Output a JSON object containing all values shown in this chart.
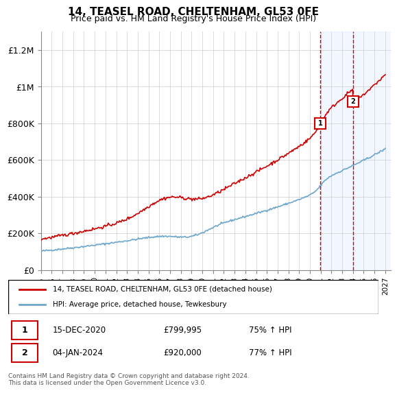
{
  "title1": "14, TEASEL ROAD, CHELTENHAM, GL53 0FE",
  "title2": "Price paid vs. HM Land Registry's House Price Index (HPI)",
  "ylabel": "",
  "ylim": [
    0,
    1300000
  ],
  "yticks": [
    0,
    200000,
    400000,
    600000,
    800000,
    1000000,
    1200000
  ],
  "ytick_labels": [
    "£0",
    "£200K",
    "£400K",
    "£600K",
    "£800K",
    "£1M",
    "£1.2M"
  ],
  "hpi_color": "#6ca6cd",
  "price_color": "#cc0000",
  "marker1_date": 2020.96,
  "marker1_price": 799995,
  "marker1_label": "15-DEC-2020",
  "marker1_amount": "£799,995",
  "marker1_pct": "75% ↑ HPI",
  "marker2_date": 2024.01,
  "marker2_price": 920000,
  "marker2_label": "04-JAN-2024",
  "marker2_amount": "£920,000",
  "marker2_pct": "77% ↑ HPI",
  "legend_line1": "14, TEASEL ROAD, CHELTENHAM, GL53 0FE (detached house)",
  "legend_line2": "HPI: Average price, detached house, Tewkesbury",
  "footnote": "Contains HM Land Registry data © Crown copyright and database right 2024.\nThis data is licensed under the Open Government Licence v3.0.",
  "shaded_start": 2021.0,
  "shaded_end": 2027.5,
  "xmin": 1995.0,
  "xmax": 2027.5
}
